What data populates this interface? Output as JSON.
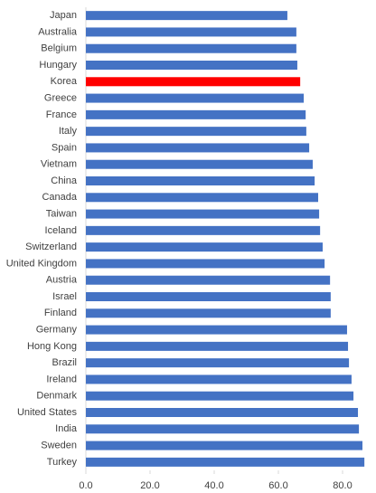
{
  "chart_data": {
    "type": "hbar",
    "categories": [
      "Japan",
      "Australia",
      "Belgium",
      "Hungary",
      "Korea",
      "Greece",
      "France",
      "Italy",
      "Spain",
      "Vietnam",
      "China",
      "Canada",
      "Taiwan",
      "Iceland",
      "Switzerland",
      "United Kingdom",
      "Austria",
      "Israel",
      "Finland",
      "Germany",
      "Hong Kong",
      "Brazil",
      "Ireland",
      "Denmark",
      "United States",
      "India",
      "Sweden",
      "Turkey"
    ],
    "values": [
      62.8,
      65.6,
      65.6,
      65.9,
      66.8,
      67.9,
      68.5,
      68.7,
      69.6,
      70.7,
      71.3,
      72.4,
      72.7,
      73.0,
      73.8,
      74.4,
      76.1,
      76.3,
      76.3,
      81.4,
      81.7,
      82.0,
      82.8,
      83.4,
      84.8,
      85.1,
      86.2,
      86.8
    ],
    "colors": [
      "#4472c4",
      "#4472c4",
      "#4472c4",
      "#4472c4",
      "#ff0000",
      "#4472c4",
      "#4472c4",
      "#4472c4",
      "#4472c4",
      "#4472c4",
      "#4472c4",
      "#4472c4",
      "#4472c4",
      "#4472c4",
      "#4472c4",
      "#4472c4",
      "#4472c4",
      "#4472c4",
      "#4472c4",
      "#4472c4",
      "#4472c4",
      "#4472c4",
      "#4472c4",
      "#4472c4",
      "#4472c4",
      "#4472c4",
      "#4472c4",
      "#4472c4"
    ],
    "xlim": [
      0,
      90
    ],
    "xticks": [
      {
        "value": 0,
        "label": "0.0"
      },
      {
        "value": 20,
        "label": "20.0"
      },
      {
        "value": 40,
        "label": "40.0"
      },
      {
        "value": 60,
        "label": "60.0"
      },
      {
        "value": 80,
        "label": "80.0"
      }
    ],
    "grid": false
  }
}
